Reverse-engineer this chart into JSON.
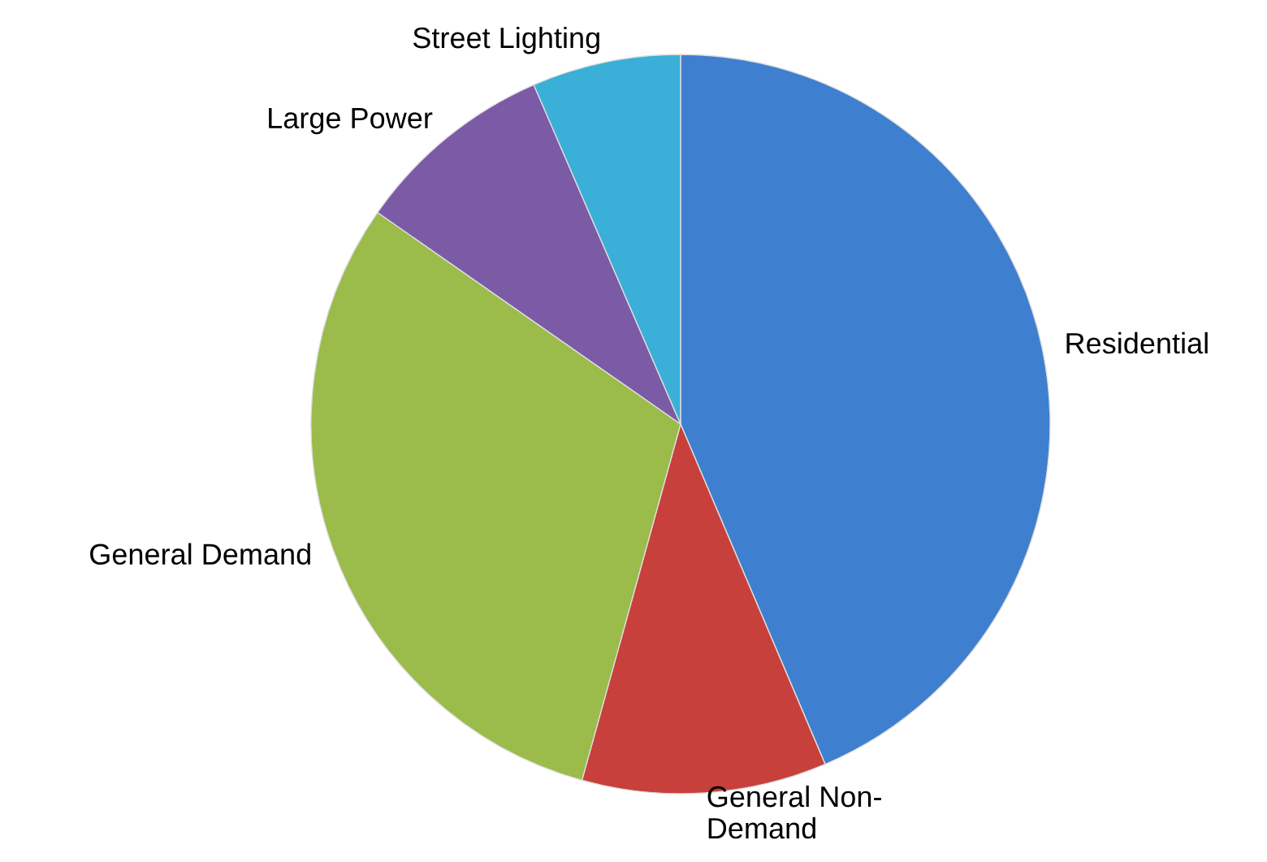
{
  "chart_data": {
    "type": "pie",
    "categories": [
      "Residential",
      "General Non-Demand",
      "General Demand",
      "Large Power",
      "Street Lighting"
    ],
    "values": [
      43.6,
      10.7,
      30.4,
      8.8,
      6.5
    ],
    "colors": [
      "#3f7fcf",
      "#c8403b",
      "#9bbb4b",
      "#7b5aa6",
      "#3aafd8"
    ],
    "legend": false
  }
}
